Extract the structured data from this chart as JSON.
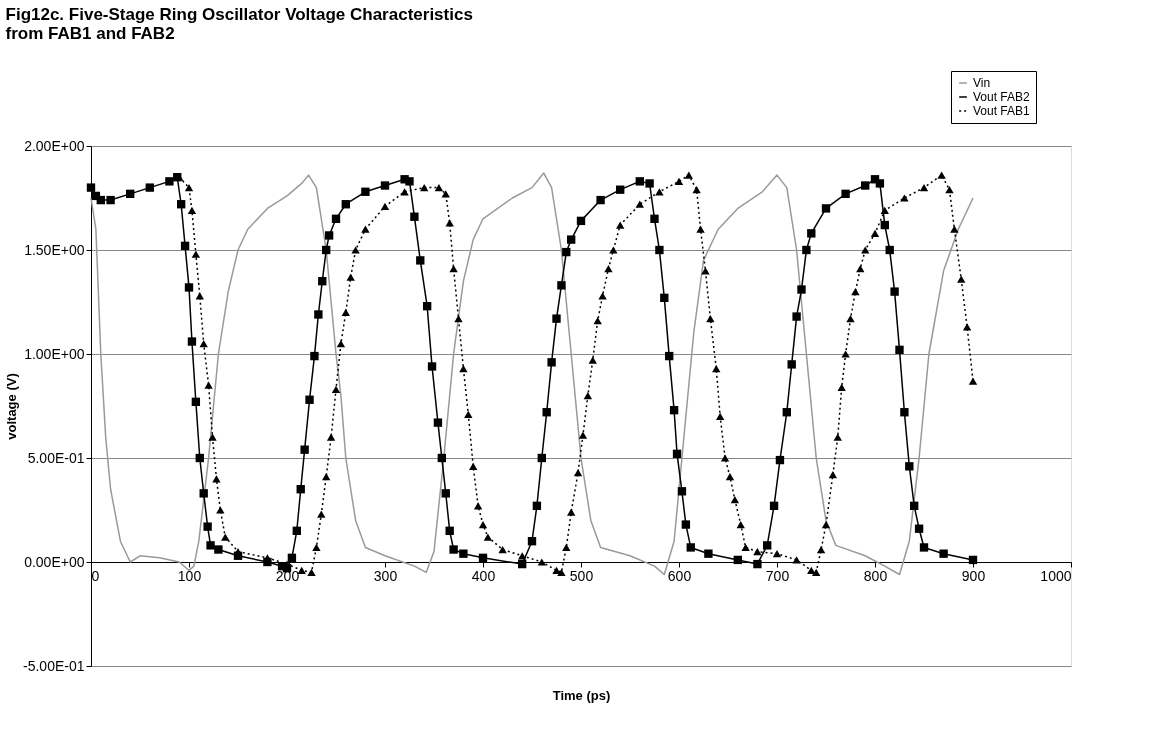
{
  "chart_data": {
    "type": "line",
    "title": "Fig12c. Five-Stage Ring Oscillator Voltage Characteristics\nfrom FAB1 and FAB2",
    "xlabel": "Time (ps)",
    "ylabel": "voltage (V)",
    "xlim": [
      0,
      1000
    ],
    "xticks": [
      0,
      100,
      200,
      300,
      400,
      500,
      600,
      700,
      800,
      900,
      1000
    ],
    "ylim": [
      -0.5,
      2.0
    ],
    "yticks": [
      {
        "value": -0.5,
        "label": "-5.00E-01"
      },
      {
        "value": 0,
        "label": "0.00E+00"
      },
      {
        "value": 0.5,
        "label": "5.00E-01"
      },
      {
        "value": 1.0,
        "label": "1.00E+00"
      },
      {
        "value": 1.5,
        "label": "1.50E+00"
      },
      {
        "value": 2.0,
        "label": "2.00E+00"
      }
    ],
    "grid": "y",
    "legend": "top right",
    "series": [
      {
        "name": "Vin",
        "color": "#999999",
        "marker": "none",
        "line_style": "solid",
        "x": [
          0,
          5,
          10,
          15,
          20,
          30,
          40,
          50,
          70,
          90,
          100,
          105,
          110,
          120,
          130,
          140,
          150,
          160,
          180,
          200,
          215,
          222,
          230,
          240,
          250,
          255,
          260,
          270,
          280,
          300,
          330,
          342,
          350,
          360,
          370,
          380,
          390,
          400,
          430,
          450,
          462,
          470,
          480,
          490,
          500,
          510,
          520,
          550,
          575,
          585,
          595,
          605,
          615,
          625,
          640,
          660,
          685,
          700,
          710,
          720,
          730,
          740,
          750,
          760,
          790,
          810,
          825,
          835,
          845,
          855,
          870,
          885,
          900
        ],
        "values": [
          1.75,
          1.6,
          1.0,
          0.6,
          0.35,
          0.1,
          0.0,
          0.03,
          0.02,
          0.0,
          -0.04,
          -0.02,
          0.1,
          0.5,
          1.0,
          1.3,
          1.5,
          1.6,
          1.7,
          1.76,
          1.82,
          1.86,
          1.8,
          1.5,
          1.0,
          0.8,
          0.5,
          0.2,
          0.07,
          0.03,
          -0.02,
          -0.05,
          0.05,
          0.5,
          1.0,
          1.35,
          1.55,
          1.65,
          1.75,
          1.8,
          1.87,
          1.8,
          1.5,
          1.0,
          0.5,
          0.2,
          0.07,
          0.03,
          -0.02,
          -0.06,
          0.1,
          0.6,
          1.1,
          1.45,
          1.6,
          1.7,
          1.78,
          1.86,
          1.8,
          1.5,
          1.0,
          0.5,
          0.2,
          0.08,
          0.03,
          -0.02,
          -0.06,
          0.1,
          0.5,
          1.0,
          1.4,
          1.6,
          1.75
        ]
      },
      {
        "name": "Vout FAB2",
        "color": "#000000",
        "marker": "square",
        "line_style": "solid",
        "x": [
          0,
          5,
          10,
          20,
          40,
          60,
          80,
          88,
          92,
          96,
          100,
          103,
          107,
          111,
          115,
          119,
          122,
          130,
          150,
          180,
          195,
          200,
          205,
          210,
          214,
          218,
          223,
          228,
          232,
          236,
          240,
          243,
          250,
          260,
          280,
          300,
          320,
          325,
          330,
          336,
          343,
          348,
          354,
          358,
          362,
          366,
          370,
          380,
          400,
          440,
          450,
          455,
          460,
          465,
          470,
          475,
          480,
          485,
          490,
          500,
          520,
          540,
          560,
          570,
          575,
          580,
          585,
          590,
          595,
          598,
          603,
          607,
          612,
          630,
          660,
          680,
          690,
          697,
          703,
          710,
          715,
          720,
          725,
          730,
          735,
          750,
          770,
          790,
          800,
          805,
          810,
          815,
          820,
          825,
          830,
          835,
          840,
          845,
          850,
          870,
          900
        ],
        "values": [
          1.8,
          1.76,
          1.74,
          1.74,
          1.77,
          1.8,
          1.83,
          1.85,
          1.72,
          1.52,
          1.32,
          1.06,
          0.77,
          0.5,
          0.33,
          0.17,
          0.08,
          0.06,
          0.03,
          0.0,
          -0.02,
          -0.03,
          0.02,
          0.15,
          0.35,
          0.54,
          0.78,
          0.99,
          1.19,
          1.35,
          1.5,
          1.57,
          1.65,
          1.72,
          1.78,
          1.81,
          1.84,
          1.83,
          1.66,
          1.45,
          1.23,
          0.94,
          0.67,
          0.5,
          0.33,
          0.15,
          0.06,
          0.04,
          0.02,
          -0.01,
          0.1,
          0.27,
          0.5,
          0.72,
          0.96,
          1.17,
          1.33,
          1.49,
          1.55,
          1.64,
          1.74,
          1.79,
          1.83,
          1.82,
          1.65,
          1.5,
          1.27,
          0.99,
          0.73,
          0.52,
          0.34,
          0.18,
          0.07,
          0.04,
          0.01,
          -0.01,
          0.08,
          0.27,
          0.49,
          0.72,
          0.95,
          1.18,
          1.31,
          1.5,
          1.58,
          1.7,
          1.77,
          1.81,
          1.84,
          1.82,
          1.62,
          1.5,
          1.3,
          1.02,
          0.72,
          0.46,
          0.27,
          0.16,
          0.07,
          0.04,
          0.01
        ]
      },
      {
        "name": "Vout FAB1",
        "color": "#000000",
        "marker": "triangle",
        "line_style": "dotted",
        "x": [
          90,
          100,
          103,
          107,
          111,
          115,
          120,
          124,
          128,
          132,
          137,
          150,
          180,
          200,
          215,
          225,
          230,
          235,
          240,
          245,
          250,
          255,
          260,
          265,
          270,
          280,
          300,
          320,
          340,
          355,
          362,
          366,
          370,
          375,
          380,
          385,
          390,
          395,
          400,
          405,
          420,
          440,
          460,
          475,
          480,
          485,
          490,
          497,
          502,
          507,
          512,
          517,
          522,
          528,
          533,
          540,
          560,
          580,
          600,
          610,
          618,
          622,
          627,
          632,
          638,
          642,
          647,
          652,
          657,
          663,
          668,
          680,
          700,
          720,
          735,
          740,
          745,
          750,
          757,
          762,
          766,
          770,
          775,
          780,
          785,
          790,
          800,
          810,
          830,
          850,
          868,
          876,
          881,
          888,
          894,
          900
        ],
        "values": [
          1.85,
          1.8,
          1.69,
          1.48,
          1.28,
          1.05,
          0.85,
          0.6,
          0.4,
          0.25,
          0.12,
          0.05,
          0.02,
          -0.01,
          -0.04,
          -0.05,
          0.07,
          0.23,
          0.41,
          0.6,
          0.83,
          1.05,
          1.2,
          1.37,
          1.5,
          1.6,
          1.71,
          1.78,
          1.8,
          1.8,
          1.77,
          1.63,
          1.41,
          1.17,
          0.93,
          0.71,
          0.46,
          0.27,
          0.18,
          0.12,
          0.06,
          0.03,
          0.0,
          -0.04,
          -0.05,
          0.07,
          0.24,
          0.43,
          0.61,
          0.8,
          0.97,
          1.16,
          1.28,
          1.41,
          1.5,
          1.62,
          1.72,
          1.78,
          1.83,
          1.86,
          1.79,
          1.6,
          1.4,
          1.17,
          0.93,
          0.7,
          0.5,
          0.41,
          0.3,
          0.18,
          0.07,
          0.05,
          0.04,
          0.01,
          -0.04,
          -0.05,
          0.06,
          0.18,
          0.42,
          0.6,
          0.84,
          1.0,
          1.17,
          1.3,
          1.41,
          1.5,
          1.58,
          1.69,
          1.75,
          1.8,
          1.86,
          1.79,
          1.6,
          1.36,
          1.13,
          0.87
        ]
      }
    ]
  }
}
